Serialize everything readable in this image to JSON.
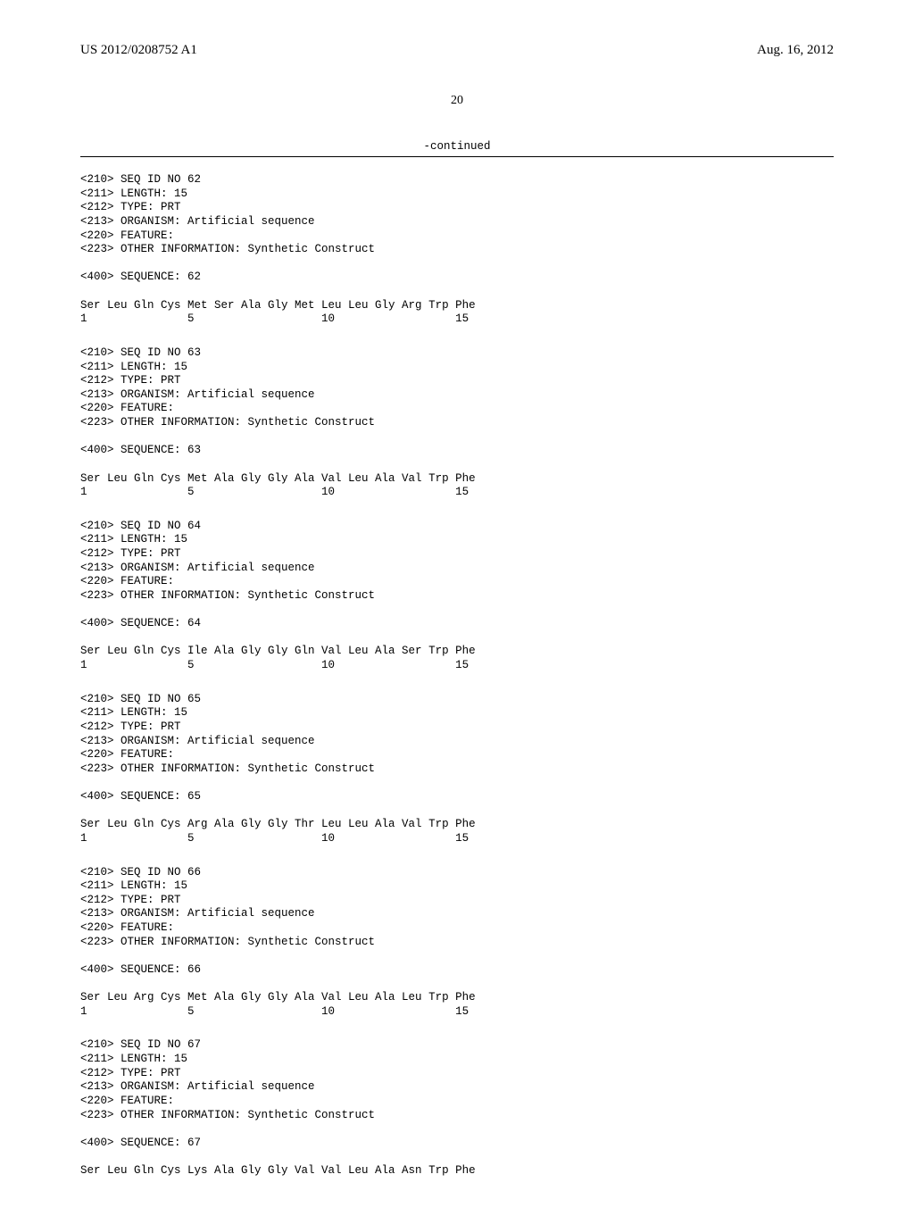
{
  "header": {
    "left": "US 2012/0208752 A1",
    "right": "Aug. 16, 2012"
  },
  "pageNumber": "20",
  "continuedLabel": "-continued",
  "sequences": [
    {
      "metaLines": [
        "<210> SEQ ID NO 62",
        "<211> LENGTH: 15",
        "<212> TYPE: PRT",
        "<213> ORGANISM: Artificial sequence",
        "<220> FEATURE:",
        "<223> OTHER INFORMATION: Synthetic Construct"
      ],
      "seqLabel": "<400> SEQUENCE: 62",
      "residueLine": "Ser Leu Gln Cys Met Ser Ala Gly Met Leu Leu Gly Arg Trp Phe",
      "numberLine": "1               5                   10                  15"
    },
    {
      "metaLines": [
        "<210> SEQ ID NO 63",
        "<211> LENGTH: 15",
        "<212> TYPE: PRT",
        "<213> ORGANISM: Artificial sequence",
        "<220> FEATURE:",
        "<223> OTHER INFORMATION: Synthetic Construct"
      ],
      "seqLabel": "<400> SEQUENCE: 63",
      "residueLine": "Ser Leu Gln Cys Met Ala Gly Gly Ala Val Leu Ala Val Trp Phe",
      "numberLine": "1               5                   10                  15"
    },
    {
      "metaLines": [
        "<210> SEQ ID NO 64",
        "<211> LENGTH: 15",
        "<212> TYPE: PRT",
        "<213> ORGANISM: Artificial sequence",
        "<220> FEATURE:",
        "<223> OTHER INFORMATION: Synthetic Construct"
      ],
      "seqLabel": "<400> SEQUENCE: 64",
      "residueLine": "Ser Leu Gln Cys Ile Ala Gly Gly Gln Val Leu Ala Ser Trp Phe",
      "numberLine": "1               5                   10                  15"
    },
    {
      "metaLines": [
        "<210> SEQ ID NO 65",
        "<211> LENGTH: 15",
        "<212> TYPE: PRT",
        "<213> ORGANISM: Artificial sequence",
        "<220> FEATURE:",
        "<223> OTHER INFORMATION: Synthetic Construct"
      ],
      "seqLabel": "<400> SEQUENCE: 65",
      "residueLine": "Ser Leu Gln Cys Arg Ala Gly Gly Thr Leu Leu Ala Val Trp Phe",
      "numberLine": "1               5                   10                  15"
    },
    {
      "metaLines": [
        "<210> SEQ ID NO 66",
        "<211> LENGTH: 15",
        "<212> TYPE: PRT",
        "<213> ORGANISM: Artificial sequence",
        "<220> FEATURE:",
        "<223> OTHER INFORMATION: Synthetic Construct"
      ],
      "seqLabel": "<400> SEQUENCE: 66",
      "residueLine": "Ser Leu Arg Cys Met Ala Gly Gly Ala Val Leu Ala Leu Trp Phe",
      "numberLine": "1               5                   10                  15"
    },
    {
      "metaLines": [
        "<210> SEQ ID NO 67",
        "<211> LENGTH: 15",
        "<212> TYPE: PRT",
        "<213> ORGANISM: Artificial sequence",
        "<220> FEATURE:",
        "<223> OTHER INFORMATION: Synthetic Construct"
      ],
      "seqLabel": "<400> SEQUENCE: 67",
      "residueLine": "Ser Leu Gln Cys Lys Ala Gly Gly Val Val Leu Ala Asn Trp Phe",
      "numberLine": ""
    }
  ]
}
